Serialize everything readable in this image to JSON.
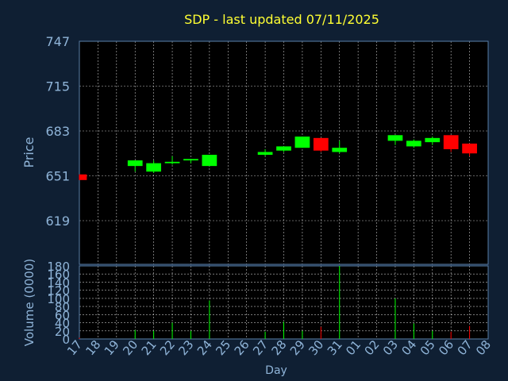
{
  "title": "SDP - last updated 07/11/2025",
  "colors": {
    "background": "#0f1f33",
    "plot_background": "#000000",
    "up": "#00ff00",
    "down": "#ff0000",
    "grid": "#ffffff",
    "text": "#8fb4d8",
    "title": "#ffff33"
  },
  "chart_data": [
    {
      "type": "candlestick",
      "title": "SDP - last updated 07/11/2025",
      "ylabel": "Price",
      "ylim": [
        619,
        747
      ],
      "yticks": [
        619,
        651,
        683,
        715,
        747
      ],
      "x_tick_labels": [
        "17",
        "18",
        "19",
        "20",
        "21",
        "22",
        "23",
        "24",
        "25",
        "26",
        "27",
        "28",
        "29",
        "30",
        "31",
        "01",
        "02",
        "03",
        "04",
        "05",
        "06",
        "07",
        "08"
      ],
      "grid": true,
      "candles": [
        {
          "day": "17",
          "open": 652,
          "close": 648,
          "high": 652,
          "low": 648
        },
        {
          "day": "20",
          "open": 658,
          "close": 662,
          "high": 662,
          "low": 654
        },
        {
          "day": "21",
          "open": 654,
          "close": 660,
          "high": 662,
          "low": 653
        },
        {
          "day": "22",
          "open": 660,
          "close": 661,
          "high": 665,
          "low": 659
        },
        {
          "day": "23",
          "open": 662,
          "close": 663,
          "high": 663,
          "low": 660
        },
        {
          "day": "24",
          "open": 658,
          "close": 666,
          "high": 666,
          "low": 658
        },
        {
          "day": "27",
          "open": 666,
          "close": 668,
          "high": 670,
          "low": 665
        },
        {
          "day": "28",
          "open": 669,
          "close": 672,
          "high": 672,
          "low": 668
        },
        {
          "day": "29",
          "open": 671,
          "close": 679,
          "high": 679,
          "low": 671
        },
        {
          "day": "30",
          "open": 678,
          "close": 669,
          "high": 678,
          "low": 668
        },
        {
          "day": "31",
          "open": 668,
          "close": 671,
          "high": 676,
          "low": 667
        },
        {
          "day": "03",
          "open": 676,
          "close": 680,
          "high": 680,
          "low": 673
        },
        {
          "day": "04",
          "open": 672,
          "close": 676,
          "high": 677,
          "low": 671
        },
        {
          "day": "05",
          "open": 675,
          "close": 678,
          "high": 679,
          "low": 673
        },
        {
          "day": "06",
          "open": 680,
          "close": 670,
          "high": 680,
          "low": 668
        },
        {
          "day": "07",
          "open": 674,
          "close": 667,
          "high": 674,
          "low": 665
        }
      ]
    },
    {
      "type": "bar",
      "ylabel": "Volume (0000)",
      "xlabel": "Day",
      "ylim": [
        0,
        180
      ],
      "yticks": [
        0,
        20,
        40,
        60,
        80,
        100,
        120,
        140,
        160,
        180
      ],
      "x_tick_labels": [
        "17",
        "18",
        "19",
        "20",
        "21",
        "22",
        "23",
        "24",
        "25",
        "26",
        "27",
        "28",
        "29",
        "30",
        "31",
        "01",
        "02",
        "03",
        "04",
        "05",
        "06",
        "07",
        "08"
      ],
      "grid": true,
      "bars": [
        {
          "day": "17",
          "value": 3,
          "direction": "down"
        },
        {
          "day": "20",
          "value": 22,
          "direction": "up"
        },
        {
          "day": "21",
          "value": 20,
          "direction": "up"
        },
        {
          "day": "22",
          "value": 40,
          "direction": "up"
        },
        {
          "day": "23",
          "value": 20,
          "direction": "up"
        },
        {
          "day": "24",
          "value": 95,
          "direction": "up"
        },
        {
          "day": "27",
          "value": 18,
          "direction": "up"
        },
        {
          "day": "28",
          "value": 42,
          "direction": "up"
        },
        {
          "day": "29",
          "value": 20,
          "direction": "up"
        },
        {
          "day": "30",
          "value": 30,
          "direction": "down"
        },
        {
          "day": "31",
          "value": 180,
          "direction": "up"
        },
        {
          "day": "03",
          "value": 100,
          "direction": "up"
        },
        {
          "day": "04",
          "value": 38,
          "direction": "up"
        },
        {
          "day": "05",
          "value": 20,
          "direction": "up"
        },
        {
          "day": "06",
          "value": 18,
          "direction": "down"
        },
        {
          "day": "07",
          "value": 32,
          "direction": "down"
        }
      ]
    }
  ]
}
